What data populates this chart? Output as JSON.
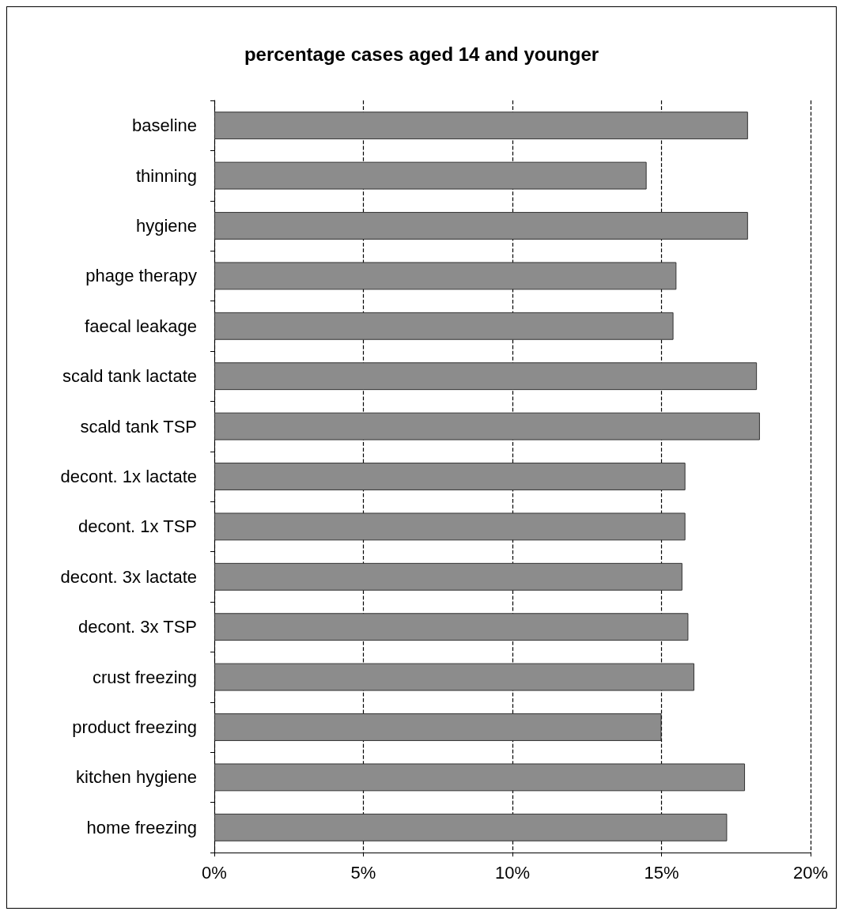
{
  "chart_data": {
    "type": "bar",
    "orientation": "horizontal",
    "title": "percentage cases aged 14 and younger",
    "categories": [
      "baseline",
      "thinning",
      "hygiene",
      "phage therapy",
      "faecal leakage",
      "scald tank lactate",
      "scald tank TSP",
      "decont. 1x lactate",
      "decont. 1x TSP",
      "decont. 3x lactate",
      "decont. 3x TSP",
      "crust freezing",
      "product freezing",
      "kitchen hygiene",
      "home freezing"
    ],
    "values": [
      17.9,
      14.5,
      17.9,
      15.5,
      15.4,
      18.2,
      18.3,
      15.8,
      15.8,
      15.7,
      15.9,
      16.1,
      15.0,
      17.8,
      17.2
    ],
    "color": "#8c8c8c",
    "xlim": [
      0,
      20
    ],
    "xticks": [
      {
        "value": 0,
        "label": "0%"
      },
      {
        "value": 5,
        "label": "5%"
      },
      {
        "value": 10,
        "label": "10%"
      },
      {
        "value": 15,
        "label": "15%"
      },
      {
        "value": 20,
        "label": "20%"
      }
    ],
    "grid": "x"
  }
}
